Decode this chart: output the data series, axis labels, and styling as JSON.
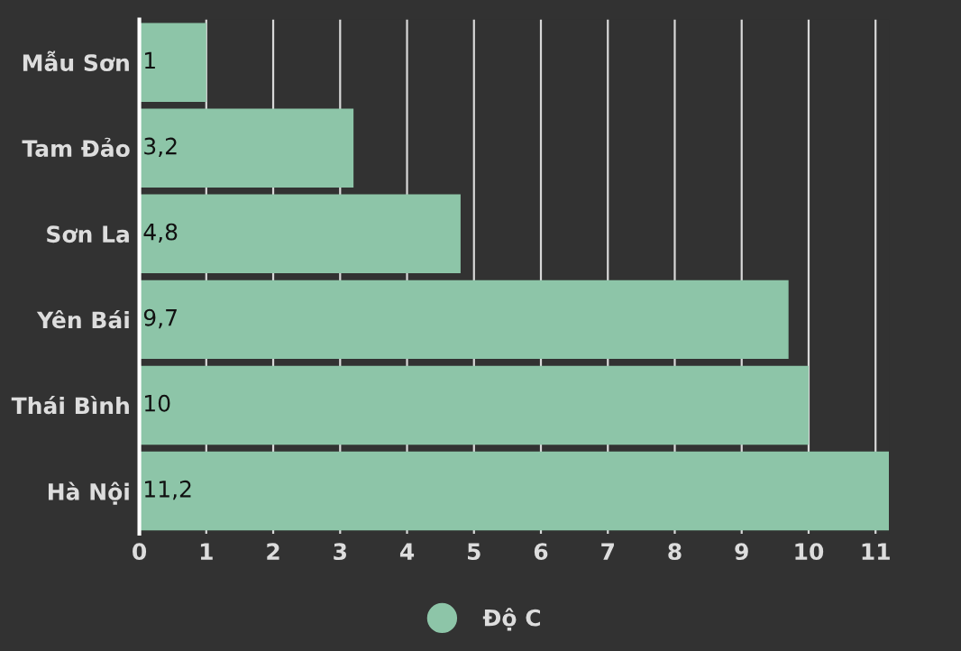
{
  "chart_data": {
    "type": "bar",
    "orientation": "horizontal",
    "categories": [
      "Mẫu Sơn",
      "Tam Đảo",
      "Sơn La",
      "Yên Bái",
      "Thái Bình",
      "Hà Nội"
    ],
    "series": [
      {
        "name": "Độ C",
        "color": "#8dc5a8",
        "values": [
          1,
          3.2,
          4.8,
          9.7,
          10,
          11.2
        ],
        "value_labels": [
          "1",
          "3,2",
          "4,8",
          "9,7",
          "10",
          "11,2"
        ]
      }
    ],
    "xlim": [
      0,
      11.2
    ],
    "xticks": [
      0,
      1,
      2,
      3,
      4,
      5,
      6,
      7,
      8,
      9,
      10,
      11
    ],
    "grid": "x",
    "legend": "bottom"
  }
}
